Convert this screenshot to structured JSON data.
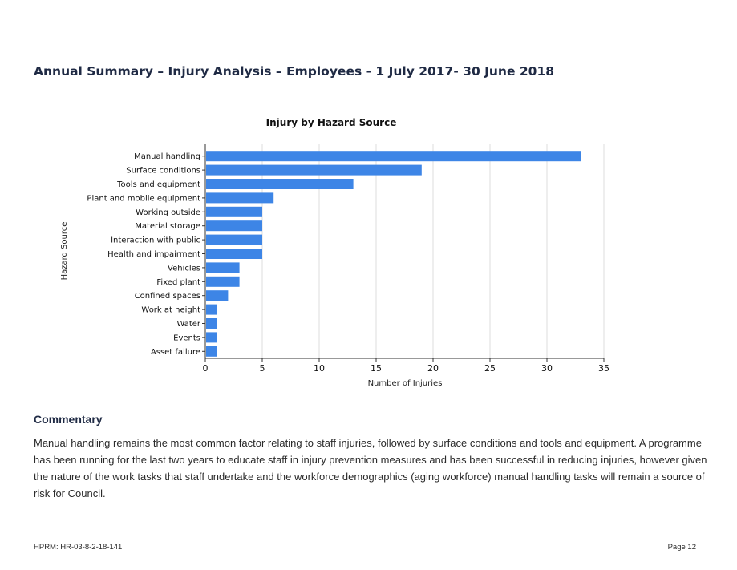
{
  "page": {
    "title": "Annual Summary – Injury Analysis – Employees - 1 July 2017- 30 June 2018"
  },
  "chart_data": {
    "type": "bar",
    "orientation": "horizontal",
    "title": "Injury by Hazard Source",
    "xlabel": "Number of Injuries",
    "ylabel": "Hazard Source",
    "categories": [
      "Manual handling",
      "Surface conditions",
      "Tools and equipment",
      "Plant and mobile equipment",
      "Working outside",
      "Material storage",
      "Interaction with public",
      "Health and impairment",
      "Vehicles",
      "Fixed plant",
      "Confined spaces",
      "Work at height",
      "Water",
      "Events",
      "Asset failure"
    ],
    "values": [
      33,
      19,
      13,
      6,
      5,
      5,
      5,
      5,
      3,
      3,
      2,
      1,
      1,
      1,
      1
    ],
    "xlim": [
      0,
      35
    ],
    "xticks": [
      "0",
      "5",
      "10",
      "15",
      "20",
      "25",
      "30",
      "35"
    ],
    "grid": true,
    "legend": "none",
    "bar_color": "#3d85e6"
  },
  "commentary": {
    "heading": "Commentary",
    "text": "Manual handling remains the most common factor relating to staff injuries, followed by surface conditions and tools and equipment. A programme has been running for the last two years to educate staff in injury prevention measures and has been successful in reducing injuries, however given the nature of the work tasks that staff undertake and the workforce demographics (aging workforce) manual handling tasks will remain a source of risk for Council."
  },
  "footer": {
    "reference": "HPRM: HR-03-8-2-18-141",
    "page_label": "Page 12"
  }
}
